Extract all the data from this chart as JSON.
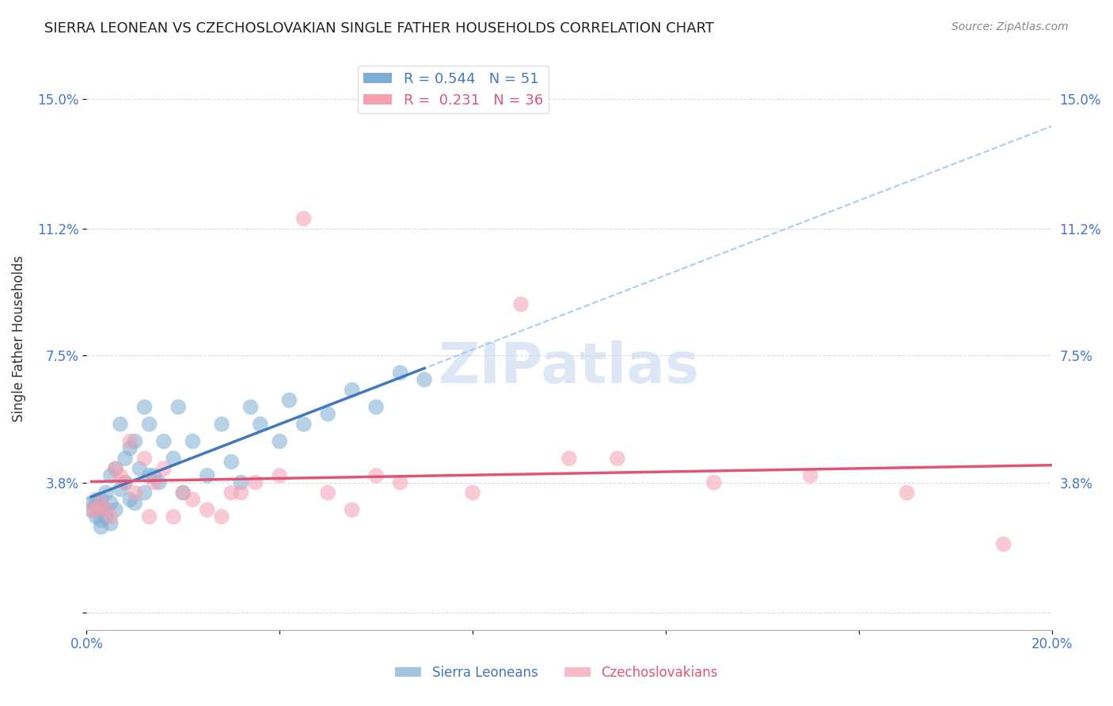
{
  "title": "SIERRA LEONEAN VS CZECHOSLOVAKIAN SINGLE FATHER HOUSEHOLDS CORRELATION CHART",
  "source": "Source: ZipAtlas.com",
  "xlabel": "",
  "ylabel": "Single Father Households",
  "xlim": [
    0.0,
    0.2
  ],
  "ylim": [
    -0.005,
    0.165
  ],
  "xticks": [
    0.0,
    0.04,
    0.08,
    0.12,
    0.16,
    0.2
  ],
  "xticklabels": [
    "0.0%",
    "",
    "",
    "",
    "",
    "20.0%"
  ],
  "ytick_positions": [
    0.0,
    0.038,
    0.075,
    0.112,
    0.15
  ],
  "ytick_labels": [
    "",
    "3.8%",
    "7.5%",
    "11.2%",
    "15.0%"
  ],
  "grid_color": "#cccccc",
  "background_color": "#ffffff",
  "sierra_color": "#7dadd4",
  "czech_color": "#f4a0b0",
  "sierra_line_color": "#4477bb",
  "czech_line_color": "#e05575",
  "sierra_trend_color": "#aaccee",
  "legend_box_color": "#ffffff",
  "legend_border_color": "#dddddd",
  "watermark_text": "ZIPatlas",
  "watermark_color": "#c8d8f0",
  "sierra_R": 0.544,
  "sierra_N": 51,
  "czech_R": 0.231,
  "czech_N": 36,
  "sierra_points_x": [
    0.001,
    0.001,
    0.002,
    0.002,
    0.002,
    0.003,
    0.003,
    0.003,
    0.003,
    0.004,
    0.004,
    0.004,
    0.005,
    0.005,
    0.005,
    0.006,
    0.006,
    0.007,
    0.007,
    0.008,
    0.008,
    0.009,
    0.009,
    0.01,
    0.01,
    0.011,
    0.012,
    0.012,
    0.013,
    0.013,
    0.014,
    0.015,
    0.016,
    0.018,
    0.019,
    0.02,
    0.022,
    0.025,
    0.028,
    0.03,
    0.032,
    0.034,
    0.036,
    0.04,
    0.042,
    0.045,
    0.05,
    0.055,
    0.06,
    0.065,
    0.07
  ],
  "sierra_points_y": [
    0.03,
    0.032,
    0.028,
    0.031,
    0.033,
    0.025,
    0.027,
    0.03,
    0.033,
    0.028,
    0.03,
    0.035,
    0.026,
    0.032,
    0.04,
    0.03,
    0.042,
    0.036,
    0.055,
    0.038,
    0.045,
    0.033,
    0.048,
    0.032,
    0.05,
    0.042,
    0.035,
    0.06,
    0.04,
    0.055,
    0.04,
    0.038,
    0.05,
    0.045,
    0.06,
    0.035,
    0.05,
    0.04,
    0.055,
    0.044,
    0.038,
    0.06,
    0.055,
    0.05,
    0.062,
    0.055,
    0.058,
    0.065,
    0.06,
    0.07,
    0.068
  ],
  "czech_points_x": [
    0.001,
    0.002,
    0.003,
    0.004,
    0.005,
    0.006,
    0.007,
    0.008,
    0.009,
    0.01,
    0.012,
    0.013,
    0.014,
    0.016,
    0.018,
    0.02,
    0.022,
    0.025,
    0.028,
    0.03,
    0.032,
    0.035,
    0.04,
    0.045,
    0.05,
    0.055,
    0.06,
    0.065,
    0.08,
    0.09,
    0.1,
    0.11,
    0.13,
    0.15,
    0.17,
    0.19
  ],
  "czech_points_y": [
    0.03,
    0.03,
    0.032,
    0.03,
    0.028,
    0.042,
    0.04,
    0.038,
    0.05,
    0.035,
    0.045,
    0.028,
    0.038,
    0.042,
    0.028,
    0.035,
    0.033,
    0.03,
    0.028,
    0.035,
    0.035,
    0.038,
    0.04,
    0.115,
    0.035,
    0.03,
    0.04,
    0.038,
    0.035,
    0.09,
    0.045,
    0.045,
    0.038,
    0.04,
    0.035,
    0.02
  ]
}
